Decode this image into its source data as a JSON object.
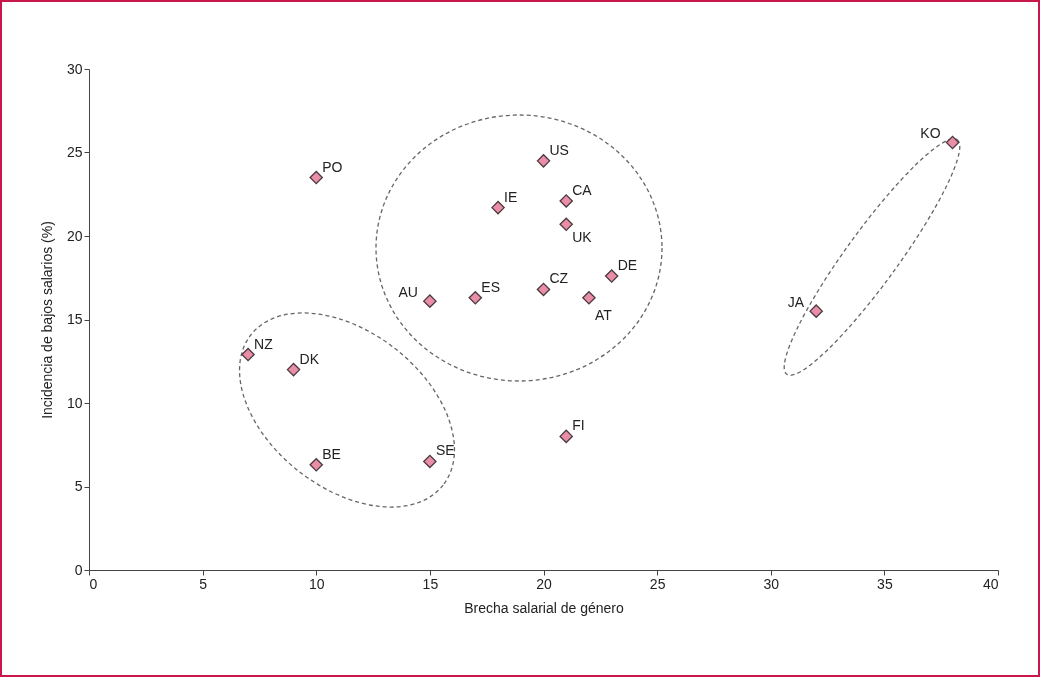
{
  "chart_data": {
    "type": "scatter",
    "xlabel": "Brecha salarial de género",
    "ylabel": "Incidencia de bajos salarios (%)",
    "x": [
      10,
      20,
      21,
      18,
      21,
      23,
      20,
      15,
      17,
      22,
      7,
      9,
      10,
      15,
      21,
      32,
      38
    ],
    "series": [
      {
        "color": "#e98ea6",
        "values": [
          23.5,
          24.5,
          22.1,
          21.7,
          20.7,
          17.6,
          16.8,
          16.1,
          16.3,
          16.3,
          12.9,
          12.0,
          6.3,
          6.5,
          8.0,
          15.5,
          25.6
        ]
      }
    ],
    "marker": "diamond",
    "grid": false,
    "legend": false,
    "xlim": [
      0,
      40
    ],
    "xticks": [
      0,
      5,
      10,
      15,
      20,
      25,
      30,
      35,
      40
    ],
    "ylim": [
      0,
      30
    ],
    "yticks": [
      0,
      5,
      10,
      15,
      20,
      25,
      30
    ],
    "annotations": [
      {
        "text": "PO",
        "x": 10,
        "y": 23.5
      },
      {
        "text": "US",
        "x": 20,
        "y": 24.5
      },
      {
        "text": "CA",
        "x": 21,
        "y": 22.1
      },
      {
        "text": "IE",
        "x": 18,
        "y": 21.7
      },
      {
        "text": "UK",
        "x": 21,
        "y": 20.7
      },
      {
        "text": "DE",
        "x": 23,
        "y": 17.6
      },
      {
        "text": "CZ",
        "x": 20,
        "y": 16.8
      },
      {
        "text": "AU",
        "x": 15,
        "y": 16.1
      },
      {
        "text": "ES",
        "x": 17,
        "y": 16.3
      },
      {
        "text": "AT",
        "x": 22,
        "y": 16.3
      },
      {
        "text": "NZ",
        "x": 7,
        "y": 12.9
      },
      {
        "text": "DK",
        "x": 9,
        "y": 12.0
      },
      {
        "text": "BE",
        "x": 10,
        "y": 6.3
      },
      {
        "text": "SE",
        "x": 15,
        "y": 6.5
      },
      {
        "text": "FI",
        "x": 21,
        "y": 8.0
      },
      {
        "text": "JA",
        "x": 32,
        "y": 15.5
      },
      {
        "text": "KO",
        "x": 38,
        "y": 25.6
      }
    ]
  }
}
